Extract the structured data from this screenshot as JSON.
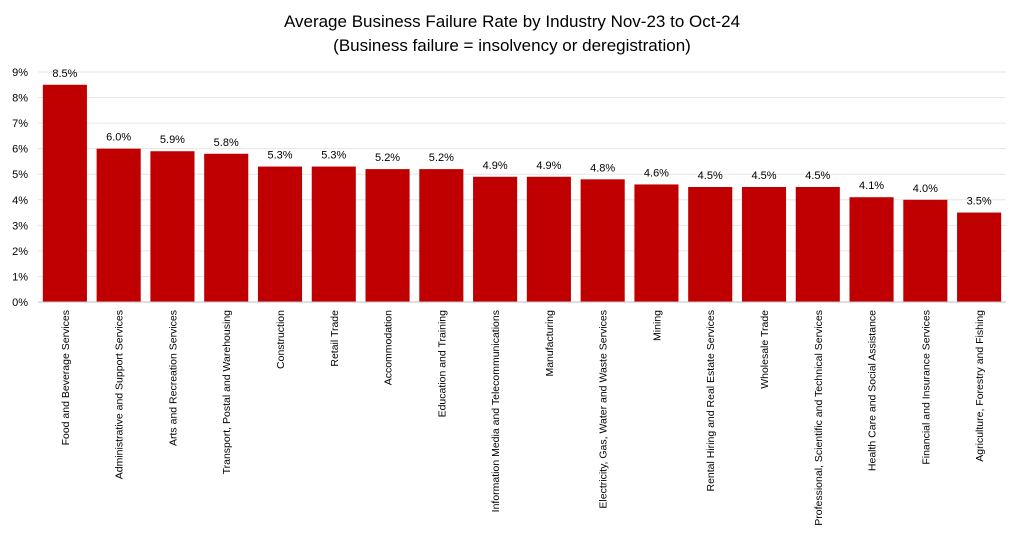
{
  "chart_data": {
    "type": "bar",
    "title": "Average Business Failure Rate by Industry Nov-23 to Oct-24",
    "subtitle": "(Business failure = insolvency or deregistration)",
    "xlabel": "",
    "ylabel": "",
    "ylim": [
      0,
      9
    ],
    "yticks": [
      "0%",
      "1%",
      "2%",
      "3%",
      "4%",
      "5%",
      "6%",
      "7%",
      "8%",
      "9%"
    ],
    "grid": true,
    "legend": "none",
    "bar_color": "#c00000",
    "categories": [
      "Food and Beverage Services",
      "Administrative and Support Services",
      "Arts and Recreation Services",
      "Transport, Postal and Warehousing",
      "Construction",
      "Retail Trade",
      "Accommodation",
      "Education and Training",
      "Information Media and Telecommunications",
      "Manufacturing",
      "Electricity, Gas, Water and Waste Services",
      "Mining",
      "Rental Hiring and Real Estate Services",
      "Wholesale Trade",
      "Professional, Scientific and Technical Services",
      "Health Care and Social Assistance",
      "Financial and Insurance Services",
      "Agriculture, Forestry and Fishing"
    ],
    "values": [
      8.5,
      6.0,
      5.9,
      5.8,
      5.3,
      5.3,
      5.2,
      5.2,
      4.9,
      4.9,
      4.8,
      4.6,
      4.5,
      4.5,
      4.5,
      4.1,
      4.0,
      3.5
    ],
    "data_labels": [
      "8.5%",
      "6.0%",
      "5.9%",
      "5.8%",
      "5.3%",
      "5.3%",
      "5.2%",
      "5.2%",
      "4.9%",
      "4.9%",
      "4.8%",
      "4.6%",
      "4.5%",
      "4.5%",
      "4.5%",
      "4.1%",
      "4.0%",
      "3.5%"
    ]
  }
}
